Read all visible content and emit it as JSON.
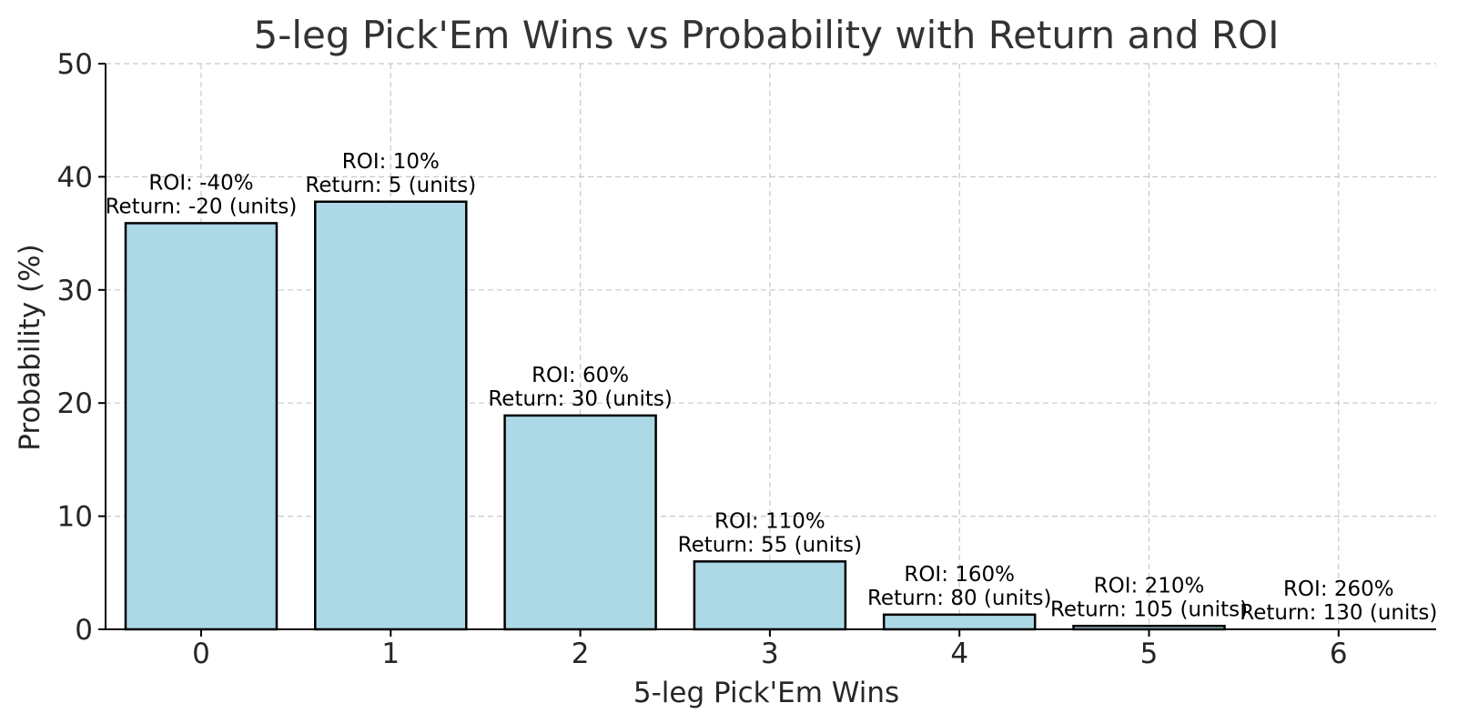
{
  "chart_data": {
    "type": "bar",
    "title": "5-leg Pick'Em Wins vs Probability with Return and ROI",
    "xlabel": "5-leg Pick'Em Wins",
    "ylabel": "Probability (%)",
    "categories": [
      "0",
      "1",
      "2",
      "3",
      "4",
      "5",
      "6"
    ],
    "values": [
      35.9,
      37.8,
      18.9,
      6.0,
      1.3,
      0.3,
      0.0
    ],
    "ylim": [
      0,
      50
    ],
    "yticks": [
      0,
      10,
      20,
      30,
      40,
      50
    ],
    "roi_labels": [
      "ROI: -40%",
      "ROI: 10%",
      "ROI: 60%",
      "ROI: 110%",
      "ROI: 160%",
      "ROI: 210%",
      "ROI: 260%"
    ],
    "return_labels": [
      "Return: -20 (units)",
      "Return: 5 (units)",
      "Return: 30 (units)",
      "Return: 55 (units)",
      "Return: 80 (units)",
      "Return: 105 (units)",
      "Return: 130 (units)"
    ],
    "grid": true,
    "bar_color": "#add8e6",
    "edge_color": "#000000"
  }
}
